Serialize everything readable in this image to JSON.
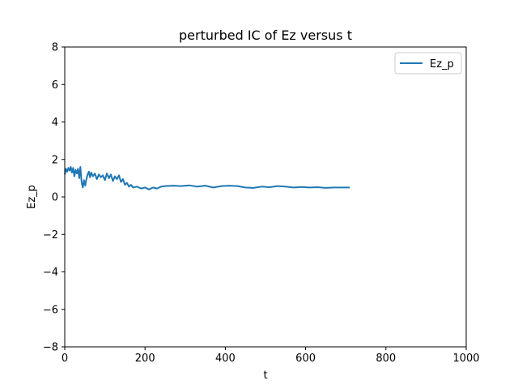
{
  "chart_data": {
    "type": "line",
    "title": "perturbed IC of Ez versus t",
    "xlabel": "t",
    "ylabel": "Ez_p",
    "xlim": [
      0,
      1000
    ],
    "ylim": [
      -8,
      8
    ],
    "xticks": [
      0,
      200,
      400,
      600,
      800,
      1000
    ],
    "yticks": [
      -8,
      -6,
      -4,
      -2,
      0,
      2,
      4,
      6,
      8
    ],
    "xtick_labels": [
      "0",
      "200",
      "400",
      "600",
      "800",
      "1000"
    ],
    "ytick_labels": [
      "−8",
      "−6",
      "−4",
      "−2",
      "0",
      "2",
      "4",
      "6",
      "8"
    ],
    "legend_position": "top-right",
    "grid": false,
    "series": [
      {
        "name": "Ez_p",
        "color": "#1f77b4",
        "x": [
          0,
          3,
          6,
          9,
          12,
          15,
          18,
          21,
          24,
          27,
          30,
          33,
          36,
          39,
          42,
          45,
          48,
          51,
          54,
          57,
          60,
          63,
          66,
          70,
          75,
          80,
          85,
          90,
          95,
          100,
          105,
          110,
          115,
          120,
          125,
          130,
          135,
          140,
          145,
          150,
          155,
          160,
          165,
          170,
          180,
          190,
          200,
          210,
          220,
          230,
          240,
          250,
          270,
          290,
          310,
          330,
          350,
          370,
          390,
          410,
          430,
          450,
          470,
          490,
          510,
          530,
          550,
          570,
          590,
          610,
          630,
          650,
          670,
          690,
          710
        ],
        "y": [
          1.2,
          1.5,
          1.35,
          1.55,
          1.4,
          1.6,
          1.3,
          1.55,
          1.1,
          1.45,
          1.25,
          1.5,
          1.0,
          1.6,
          0.8,
          0.5,
          0.9,
          0.6,
          0.95,
          1.2,
          1.35,
          1.05,
          1.3,
          1.1,
          1.25,
          0.95,
          1.2,
          1.05,
          1.15,
          0.9,
          1.25,
          1.0,
          1.2,
          0.85,
          1.1,
          0.95,
          1.15,
          0.8,
          0.95,
          0.65,
          0.75,
          0.55,
          0.65,
          0.5,
          0.55,
          0.45,
          0.5,
          0.4,
          0.5,
          0.45,
          0.55,
          0.58,
          0.6,
          0.58,
          0.62,
          0.55,
          0.6,
          0.5,
          0.58,
          0.6,
          0.58,
          0.5,
          0.48,
          0.55,
          0.52,
          0.58,
          0.55,
          0.5,
          0.53,
          0.5,
          0.52,
          0.48,
          0.5,
          0.5,
          0.5
        ]
      }
    ]
  }
}
